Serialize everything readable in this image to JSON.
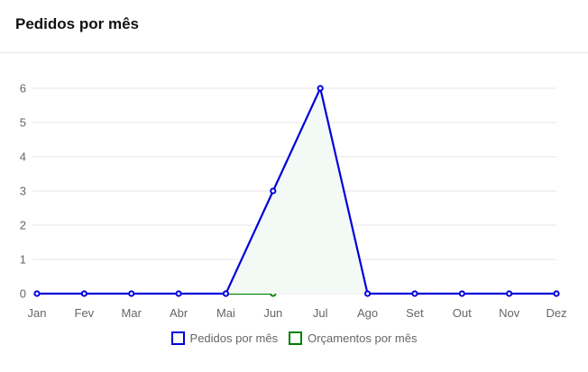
{
  "header": {
    "title": "Pedidos por mês"
  },
  "chart_data": {
    "type": "line",
    "categories": [
      "Jan",
      "Fev",
      "Mar",
      "Abr",
      "Mai",
      "Jun",
      "Jul",
      "Ago",
      "Set",
      "Out",
      "Nov",
      "Dez"
    ],
    "series": [
      {
        "name": "Pedidos por mês",
        "values": [
          0,
          0,
          0,
          0,
          0,
          3,
          6,
          0,
          0,
          0,
          0,
          0
        ],
        "color": "#0000dd",
        "fill": "#f3faf5"
      },
      {
        "name": "Orçamentos por mês",
        "values": [
          null,
          null,
          null,
          null,
          0,
          0,
          null,
          null,
          null,
          null,
          null,
          null
        ],
        "color": "#008000"
      }
    ],
    "y_ticks": [
      "0",
      "1",
      "2",
      "3",
      "4",
      "5",
      "6"
    ],
    "ylim": [
      0,
      6
    ],
    "grid": true,
    "legend_position": "bottom"
  }
}
